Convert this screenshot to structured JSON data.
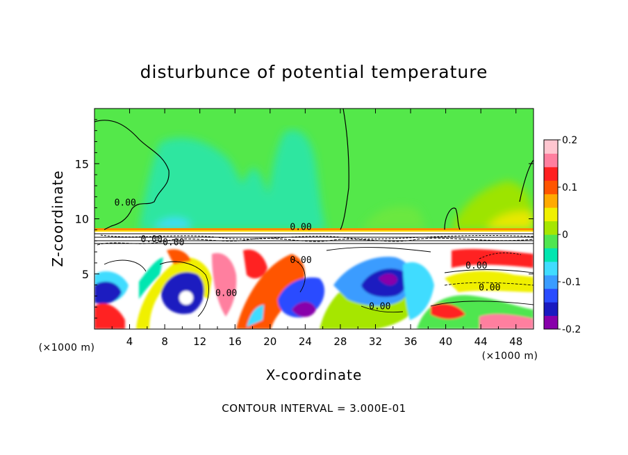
{
  "chart_data": {
    "type": "heatmap",
    "title": "disturbunce of potential temperature",
    "xlabel": "X-coordinate",
    "ylabel": "Z-coordinate",
    "x_unit": "(×1000 m)",
    "y_unit": "(×1000 m)",
    "xlim": [
      0,
      50
    ],
    "ylim": [
      0,
      20
    ],
    "x_ticks": [
      4,
      8,
      12,
      16,
      20,
      24,
      28,
      32,
      36,
      40,
      44,
      48
    ],
    "y_ticks": [
      5,
      10,
      15
    ],
    "colorbar": {
      "min": -0.2,
      "max": 0.2,
      "ticks": [
        -0.2,
        -0.1,
        0,
        0.1,
        0.2
      ],
      "tick_labels": [
        "-0.2",
        "-0.1",
        "0",
        "0.1",
        "0.2"
      ],
      "colors": [
        "#8800aa",
        "#1a1ac0",
        "#2a4cff",
        "#3a9cff",
        "#40dcff",
        "#00e6b0",
        "#50e650",
        "#a6e600",
        "#f0f000",
        "#ffaa00",
        "#ff5500",
        "#ff2020",
        "#ff7f9f",
        "#ffc6d0"
      ]
    },
    "contour_label": "0.00",
    "contour_labels": [
      {
        "x": 3.5,
        "y": 11.2
      },
      {
        "x": 6.5,
        "y": 7.9
      },
      {
        "x": 9.0,
        "y": 7.6
      },
      {
        "x": 15.0,
        "y": 3.0
      },
      {
        "x": 23.5,
        "y": 9.0
      },
      {
        "x": 23.5,
        "y": 6.0
      },
      {
        "x": 32.5,
        "y": 1.8
      },
      {
        "x": 43.5,
        "y": 5.5
      },
      {
        "x": 45.0,
        "y": 3.5
      }
    ],
    "footer": "CONTOUR INTERVAL = 3.000E-01"
  }
}
